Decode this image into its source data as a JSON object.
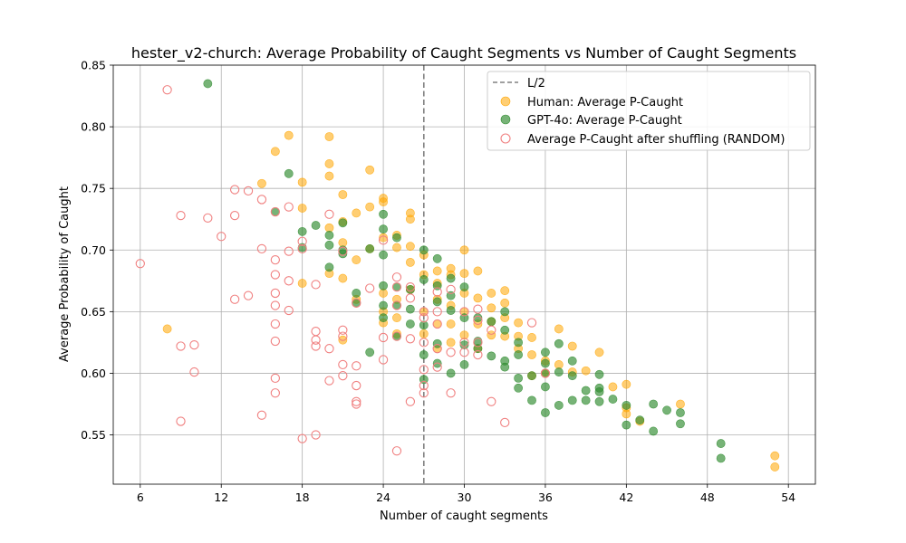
{
  "chart_data": {
    "type": "scatter",
    "title": "hester_v2-church: Average Probability of Caught Segments vs Number of Caught Segments",
    "xlabel": "Number of caught segments",
    "ylabel": "Average Probability of Caught",
    "xlim": [
      4,
      56
    ],
    "ylim": [
      0.51,
      0.85
    ],
    "xticks": [
      6,
      12,
      18,
      24,
      30,
      36,
      42,
      48,
      54
    ],
    "yticks": [
      0.55,
      0.6,
      0.65,
      0.7,
      0.75,
      0.8,
      0.85
    ],
    "xtick_labels": [
      "6",
      "12",
      "18",
      "24",
      "30",
      "36",
      "42",
      "48",
      "54"
    ],
    "ytick_labels": [
      "0.55",
      "0.60",
      "0.65",
      "0.70",
      "0.75",
      "0.80",
      "0.85"
    ],
    "grid": true,
    "legend_position": "top-right",
    "vline": {
      "x": 27,
      "label": "L/2",
      "color": "#808080"
    },
    "series": [
      {
        "name": "Human: Average P-Caught",
        "color": "#ffa500",
        "marker": "filled",
        "points": [
          [
            8,
            0.636
          ],
          [
            15,
            0.754
          ],
          [
            16,
            0.78
          ],
          [
            17,
            0.793
          ],
          [
            18,
            0.755
          ],
          [
            18,
            0.734
          ],
          [
            18,
            0.673
          ],
          [
            20,
            0.792
          ],
          [
            20,
            0.77
          ],
          [
            20,
            0.76
          ],
          [
            20,
            0.718
          ],
          [
            20,
            0.681
          ],
          [
            21,
            0.745
          ],
          [
            21,
            0.723
          ],
          [
            21,
            0.706
          ],
          [
            21,
            0.677
          ],
          [
            21,
            0.627
          ],
          [
            22,
            0.73
          ],
          [
            22,
            0.692
          ],
          [
            22,
            0.66
          ],
          [
            23,
            0.765
          ],
          [
            23,
            0.735
          ],
          [
            23,
            0.701
          ],
          [
            24,
            0.742
          ],
          [
            24,
            0.739
          ],
          [
            24,
            0.71
          ],
          [
            24,
            0.665
          ],
          [
            24,
            0.65
          ],
          [
            24,
            0.641
          ],
          [
            25,
            0.712
          ],
          [
            25,
            0.702
          ],
          [
            25,
            0.66
          ],
          [
            25,
            0.645
          ],
          [
            25,
            0.632
          ],
          [
            26,
            0.73
          ],
          [
            26,
            0.725
          ],
          [
            26,
            0.703
          ],
          [
            26,
            0.69
          ],
          [
            26,
            0.668
          ],
          [
            27,
            0.696
          ],
          [
            27,
            0.68
          ],
          [
            27,
            0.65
          ],
          [
            27,
            0.632
          ],
          [
            28,
            0.683
          ],
          [
            28,
            0.673
          ],
          [
            28,
            0.66
          ],
          [
            28,
            0.64
          ],
          [
            28,
            0.62
          ],
          [
            29,
            0.685
          ],
          [
            29,
            0.68
          ],
          [
            29,
            0.655
          ],
          [
            29,
            0.64
          ],
          [
            29,
            0.625
          ],
          [
            30,
            0.7
          ],
          [
            30,
            0.681
          ],
          [
            30,
            0.665
          ],
          [
            30,
            0.65
          ],
          [
            30,
            0.631
          ],
          [
            31,
            0.683
          ],
          [
            31,
            0.661
          ],
          [
            31,
            0.64
          ],
          [
            31,
            0.62
          ],
          [
            32,
            0.665
          ],
          [
            32,
            0.653
          ],
          [
            32,
            0.642
          ],
          [
            32,
            0.631
          ],
          [
            33,
            0.667
          ],
          [
            33,
            0.657
          ],
          [
            33,
            0.645
          ],
          [
            33,
            0.63
          ],
          [
            34,
            0.641
          ],
          [
            34,
            0.63
          ],
          [
            34,
            0.62
          ],
          [
            35,
            0.629
          ],
          [
            35,
            0.615
          ],
          [
            35,
            0.598
          ],
          [
            36,
            0.61
          ],
          [
            36,
            0.6
          ],
          [
            37,
            0.636
          ],
          [
            37,
            0.607
          ],
          [
            38,
            0.622
          ],
          [
            38,
            0.601
          ],
          [
            39,
            0.602
          ],
          [
            40,
            0.617
          ],
          [
            41,
            0.589
          ],
          [
            42,
            0.591
          ],
          [
            42,
            0.572
          ],
          [
            42,
            0.567
          ],
          [
            43,
            0.561
          ],
          [
            46,
            0.575
          ],
          [
            53,
            0.533
          ],
          [
            53,
            0.524
          ]
        ]
      },
      {
        "name": "GPT-4o: Average P-Caught",
        "color": "#2e8b2e",
        "marker": "filled",
        "points": [
          [
            11,
            0.835
          ],
          [
            16,
            0.731
          ],
          [
            17,
            0.762
          ],
          [
            18,
            0.715
          ],
          [
            18,
            0.702
          ],
          [
            19,
            0.72
          ],
          [
            20,
            0.712
          ],
          [
            20,
            0.704
          ],
          [
            20,
            0.686
          ],
          [
            21,
            0.722
          ],
          [
            21,
            0.7
          ],
          [
            21,
            0.697
          ],
          [
            22,
            0.665
          ],
          [
            22,
            0.657
          ],
          [
            23,
            0.701
          ],
          [
            23,
            0.617
          ],
          [
            24,
            0.729
          ],
          [
            24,
            0.717
          ],
          [
            24,
            0.696
          ],
          [
            24,
            0.671
          ],
          [
            24,
            0.655
          ],
          [
            24,
            0.645
          ],
          [
            25,
            0.71
          ],
          [
            25,
            0.67
          ],
          [
            25,
            0.655
          ],
          [
            25,
            0.63
          ],
          [
            26,
            0.668
          ],
          [
            26,
            0.652
          ],
          [
            26,
            0.64
          ],
          [
            27,
            0.7
          ],
          [
            27,
            0.676
          ],
          [
            27,
            0.639
          ],
          [
            27,
            0.615
          ],
          [
            27,
            0.595
          ],
          [
            28,
            0.693
          ],
          [
            28,
            0.671
          ],
          [
            28,
            0.658
          ],
          [
            28,
            0.624
          ],
          [
            28,
            0.608
          ],
          [
            29,
            0.677
          ],
          [
            29,
            0.663
          ],
          [
            29,
            0.651
          ],
          [
            29,
            0.6
          ],
          [
            30,
            0.67
          ],
          [
            30,
            0.645
          ],
          [
            30,
            0.623
          ],
          [
            30,
            0.607
          ],
          [
            31,
            0.645
          ],
          [
            31,
            0.626
          ],
          [
            31,
            0.62
          ],
          [
            32,
            0.642
          ],
          [
            32,
            0.614
          ],
          [
            33,
            0.65
          ],
          [
            33,
            0.635
          ],
          [
            33,
            0.61
          ],
          [
            33,
            0.605
          ],
          [
            34,
            0.625
          ],
          [
            34,
            0.615
          ],
          [
            34,
            0.596
          ],
          [
            34,
            0.588
          ],
          [
            35,
            0.598
          ],
          [
            35,
            0.578
          ],
          [
            36,
            0.617
          ],
          [
            36,
            0.608
          ],
          [
            36,
            0.6
          ],
          [
            36,
            0.589
          ],
          [
            36,
            0.568
          ],
          [
            37,
            0.624
          ],
          [
            37,
            0.601
          ],
          [
            37,
            0.574
          ],
          [
            38,
            0.61
          ],
          [
            38,
            0.598
          ],
          [
            38,
            0.578
          ],
          [
            39,
            0.586
          ],
          [
            39,
            0.578
          ],
          [
            40,
            0.599
          ],
          [
            40,
            0.588
          ],
          [
            40,
            0.585
          ],
          [
            40,
            0.577
          ],
          [
            41,
            0.579
          ],
          [
            42,
            0.574
          ],
          [
            42,
            0.558
          ],
          [
            43,
            0.562
          ],
          [
            44,
            0.575
          ],
          [
            44,
            0.553
          ],
          [
            45,
            0.57
          ],
          [
            46,
            0.568
          ],
          [
            46,
            0.559
          ],
          [
            49,
            0.543
          ],
          [
            49,
            0.531
          ]
        ]
      },
      {
        "name": "Average P-Caught after shuffling (RANDOM)",
        "color": "#f08080",
        "marker": "hollow",
        "points": [
          [
            6,
            0.689
          ],
          [
            8,
            0.83
          ],
          [
            9,
            0.728
          ],
          [
            9,
            0.622
          ],
          [
            9,
            0.561
          ],
          [
            10,
            0.623
          ],
          [
            10,
            0.601
          ],
          [
            11,
            0.726
          ],
          [
            12,
            0.711
          ],
          [
            13,
            0.749
          ],
          [
            13,
            0.728
          ],
          [
            13,
            0.66
          ],
          [
            14,
            0.748
          ],
          [
            14,
            0.663
          ],
          [
            15,
            0.741
          ],
          [
            15,
            0.701
          ],
          [
            15,
            0.566
          ],
          [
            16,
            0.731
          ],
          [
            16,
            0.692
          ],
          [
            16,
            0.68
          ],
          [
            16,
            0.665
          ],
          [
            16,
            0.655
          ],
          [
            16,
            0.64
          ],
          [
            16,
            0.626
          ],
          [
            16,
            0.596
          ],
          [
            16,
            0.584
          ],
          [
            17,
            0.735
          ],
          [
            17,
            0.699
          ],
          [
            17,
            0.675
          ],
          [
            17,
            0.651
          ],
          [
            18,
            0.707
          ],
          [
            18,
            0.701
          ],
          [
            18,
            0.547
          ],
          [
            19,
            0.672
          ],
          [
            19,
            0.634
          ],
          [
            19,
            0.627
          ],
          [
            19,
            0.622
          ],
          [
            19,
            0.55
          ],
          [
            20,
            0.729
          ],
          [
            20,
            0.62
          ],
          [
            20,
            0.594
          ],
          [
            21,
            0.699
          ],
          [
            21,
            0.635
          ],
          [
            21,
            0.63
          ],
          [
            21,
            0.607
          ],
          [
            21,
            0.598
          ],
          [
            22,
            0.657
          ],
          [
            22,
            0.606
          ],
          [
            22,
            0.59
          ],
          [
            22,
            0.577
          ],
          [
            22,
            0.575
          ],
          [
            23,
            0.669
          ],
          [
            24,
            0.708
          ],
          [
            24,
            0.629
          ],
          [
            24,
            0.611
          ],
          [
            25,
            0.678
          ],
          [
            25,
            0.67
          ],
          [
            25,
            0.655
          ],
          [
            25,
            0.63
          ],
          [
            25,
            0.537
          ],
          [
            26,
            0.67
          ],
          [
            26,
            0.661
          ],
          [
            26,
            0.628
          ],
          [
            26,
            0.577
          ],
          [
            27,
            0.65
          ],
          [
            27,
            0.645
          ],
          [
            27,
            0.625
          ],
          [
            27,
            0.603
          ],
          [
            27,
            0.59
          ],
          [
            27,
            0.584
          ],
          [
            28,
            0.666
          ],
          [
            28,
            0.65
          ],
          [
            28,
            0.64
          ],
          [
            28,
            0.62
          ],
          [
            28,
            0.605
          ],
          [
            29,
            0.668
          ],
          [
            29,
            0.617
          ],
          [
            29,
            0.584
          ],
          [
            30,
            0.65
          ],
          [
            30,
            0.625
          ],
          [
            30,
            0.617
          ],
          [
            31,
            0.652
          ],
          [
            31,
            0.643
          ],
          [
            31,
            0.625
          ],
          [
            31,
            0.615
          ],
          [
            32,
            0.635
          ],
          [
            32,
            0.577
          ],
          [
            33,
            0.56
          ],
          [
            35,
            0.641
          ],
          [
            36,
            0.6
          ]
        ]
      }
    ]
  }
}
